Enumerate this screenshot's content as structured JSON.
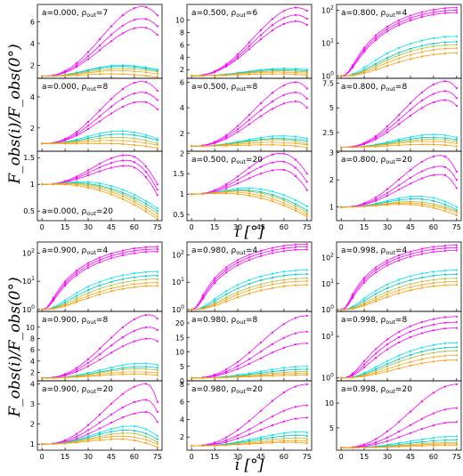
{
  "figure": {
    "ylabel": "F_obs(i)/F_obs(0°)",
    "xlabel": "i [°]",
    "xticks": [
      0,
      15,
      30,
      45,
      60,
      75
    ]
  },
  "colors": [
    "#ff00ff",
    "#ff00ff",
    "#ff00ff",
    "#00e5ee",
    "#00c8c8",
    "#a3c33a",
    "#ffa01e",
    "#ff9900"
  ],
  "chart_data": [
    {
      "type": "line",
      "a": "0.000",
      "rho": "7",
      "label": "a=0.000, ρout=7",
      "yscale": "linear",
      "ylim": [
        0.8,
        7.6
      ],
      "yticks": [
        2,
        4,
        6
      ],
      "peaks": [
        7.4,
        6.3,
        5.5,
        2.0,
        1.9,
        1.7,
        1.5,
        1.2
      ],
      "pk": [
        65,
        65,
        65,
        50,
        50,
        50,
        48,
        45
      ],
      "end": [
        6.6,
        5.6,
        4.8,
        1.6,
        1.5,
        1.4,
        1.2,
        0.9
      ]
    },
    {
      "type": "line",
      "a": "0.500",
      "rho": "6",
      "label": "a=0.500, ρout=6",
      "yscale": "linear",
      "ylim": [
        0.6,
        12.5
      ],
      "yticks": [
        2,
        4,
        6,
        8,
        10
      ],
      "peaks": [
        12.0,
        10.8,
        9.8,
        2.2,
        2.0,
        1.8,
        1.6,
        1.3
      ],
      "pk": [
        68,
        68,
        68,
        60,
        58,
        58,
        55,
        55
      ],
      "end": [
        11.5,
        10.2,
        9.2,
        2.0,
        1.8,
        1.6,
        1.4,
        1.1
      ]
    },
    {
      "type": "line",
      "a": "0.800",
      "rho": "4",
      "label": "a=0.800, ρout=4",
      "yscale": "log",
      "ylim": [
        0.85,
        150
      ],
      "yticks": [
        1,
        10,
        100
      ],
      "peaks": [
        120,
        100,
        85,
        16,
        11,
        9,
        7,
        5
      ],
      "pk": [
        75,
        75,
        75,
        75,
        75,
        75,
        75,
        75
      ],
      "end": [
        120,
        100,
        85,
        16,
        11,
        9,
        7,
        5
      ]
    },
    {
      "type": "line",
      "a": "0.000",
      "rho": "8",
      "label": "a=0.000, ρout=8",
      "yscale": "linear",
      "ylim": [
        0.5,
        5.2
      ],
      "yticks": [
        2,
        4
      ],
      "peaks": [
        5.0,
        4.3,
        3.7,
        1.8,
        1.6,
        1.4,
        1.2,
        1.0
      ],
      "pk": [
        65,
        65,
        65,
        50,
        50,
        48,
        45,
        40
      ],
      "end": [
        4.4,
        3.8,
        3.2,
        1.3,
        1.2,
        1.0,
        0.9,
        0.7
      ]
    },
    {
      "type": "line",
      "a": "0.500",
      "rho": "8",
      "label": "a=0.500, ρout=8",
      "yscale": "linear",
      "ylim": [
        0.6,
        6.3
      ],
      "yticks": [
        2,
        4,
        6
      ],
      "peaks": [
        6.0,
        5.2,
        4.5,
        1.8,
        1.6,
        1.5,
        1.3,
        1.1
      ],
      "pk": [
        68,
        68,
        68,
        58,
        55,
        55,
        52,
        50
      ],
      "end": [
        5.5,
        4.7,
        4.0,
        1.6,
        1.4,
        1.2,
        1.1,
        0.9
      ]
    },
    {
      "type": "line",
      "a": "0.800",
      "rho": "8",
      "label": "a=0.800, ρout=8",
      "yscale": "linear",
      "ylim": [
        0.6,
        8.0
      ],
      "yticks": [
        2.5,
        5.0,
        7.5
      ],
      "peaks": [
        7.7,
        6.7,
        5.8,
        2.3,
        2.0,
        1.8,
        1.6,
        1.3
      ],
      "pk": [
        68,
        68,
        68,
        60,
        58,
        58,
        55,
        55
      ],
      "end": [
        7.0,
        6.0,
        5.2,
        2.0,
        1.8,
        1.6,
        1.4,
        1.1
      ]
    },
    {
      "type": "line",
      "a": "0.000",
      "rho": "20",
      "label": "a=0.000, ρout=20",
      "yscale": "linear",
      "ylim": [
        0.32,
        1.62
      ],
      "yticks": [
        0.5,
        1.0,
        1.5
      ],
      "peaks": [
        1.55,
        1.45,
        1.35,
        1.05,
        1.03,
        1.02,
        1.01,
        1.0
      ],
      "pk": [
        55,
        55,
        55,
        25,
        20,
        18,
        15,
        10
      ],
      "end": [
        1.0,
        0.9,
        0.8,
        0.55,
        0.5,
        0.45,
        0.4,
        0.35
      ]
    },
    {
      "type": "line",
      "a": "0.500",
      "rho": "20",
      "label": "a=0.500, ρout=20",
      "yscale": "linear",
      "ylim": [
        0.35,
        2.05
      ],
      "yticks": [
        0.5,
        1.0,
        1.5,
        2.0
      ],
      "peaks": [
        2.0,
        1.8,
        1.6,
        1.15,
        1.1,
        1.08,
        1.05,
        1.02
      ],
      "pk": [
        58,
        58,
        58,
        35,
        32,
        30,
        25,
        20
      ],
      "end": [
        1.5,
        1.3,
        1.1,
        0.7,
        0.6,
        0.55,
        0.5,
        0.45
      ]
    },
    {
      "type": "line",
      "a": "0.800",
      "rho": "20",
      "label": "a=0.800, ρout=20",
      "yscale": "linear",
      "ylim": [
        0.5,
        3.05
      ],
      "yticks": [
        1,
        2,
        3
      ],
      "peaks": [
        2.9,
        2.5,
        2.2,
        1.4,
        1.3,
        1.2,
        1.15,
        1.1
      ],
      "pk": [
        65,
        65,
        65,
        50,
        48,
        45,
        42,
        40
      ],
      "end": [
        2.3,
        2.0,
        1.7,
        1.0,
        0.9,
        0.85,
        0.8,
        0.7
      ]
    },
    {
      "type": "line",
      "a": "0.900",
      "rho": "4",
      "label": "a=0.900, ρout=4",
      "yscale": "log",
      "ylim": [
        0.85,
        250
      ],
      "yticks": [
        1,
        10,
        100
      ],
      "peaks": [
        170,
        140,
        115,
        22,
        16,
        12,
        9,
        7
      ],
      "pk": [
        75,
        75,
        75,
        75,
        75,
        75,
        75,
        75
      ],
      "end": [
        170,
        140,
        115,
        22,
        16,
        12,
        9,
        7
      ]
    },
    {
      "type": "line",
      "a": "0.980",
      "rho": "4",
      "label": "a=0.980, ρout=4",
      "yscale": "log",
      "ylim": [
        0.85,
        300
      ],
      "yticks": [
        1,
        10,
        100
      ],
      "peaks": [
        250,
        200,
        160,
        28,
        20,
        14,
        11,
        8
      ],
      "pk": [
        75,
        75,
        75,
        75,
        75,
        75,
        75,
        75
      ],
      "end": [
        250,
        200,
        160,
        28,
        20,
        14,
        11,
        8
      ]
    },
    {
      "type": "line",
      "a": "0.998",
      "rho": "4",
      "label": "a=0.998, ρout=4",
      "yscale": "log",
      "ylim": [
        0.85,
        400
      ],
      "yticks": [
        1,
        10,
        100
      ],
      "peaks": [
        300,
        240,
        190,
        33,
        23,
        16,
        12,
        9
      ],
      "pk": [
        75,
        75,
        75,
        75,
        75,
        75,
        75,
        75
      ],
      "end": [
        300,
        240,
        190,
        33,
        23,
        16,
        12,
        9
      ]
    },
    {
      "type": "line",
      "a": "0.900",
      "rho": "8",
      "label": "a=0.900, ρout=8",
      "yscale": "linear",
      "ylim": [
        0.5,
        12.8
      ],
      "yticks": [
        2,
        4,
        6,
        8,
        10
      ],
      "peaks": [
        12.2,
        10.0,
        8.0,
        3.6,
        3.0,
        2.6,
        2.1,
        1.7
      ],
      "pk": [
        70,
        70,
        70,
        65,
        65,
        62,
        60,
        60
      ],
      "end": [
        11.5,
        9.5,
        7.5,
        3.3,
        2.8,
        2.4,
        1.9,
        1.5
      ]
    },
    {
      "type": "line",
      "a": "0.980",
      "rho": "8",
      "label": "a=0.980, ρout=8",
      "yscale": "linear",
      "ylim": [
        0,
        24
      ],
      "yticks": [
        0,
        5,
        10,
        15,
        20
      ],
      "peaks": [
        22.5,
        17.0,
        13.0,
        5.0,
        4.0,
        3.2,
        2.6,
        2.0
      ],
      "pk": [
        75,
        75,
        75,
        75,
        75,
        75,
        75,
        75
      ],
      "end": [
        22.5,
        17.0,
        13.0,
        5.0,
        4.0,
        3.2,
        2.6,
        2.0
      ]
    },
    {
      "type": "line",
      "a": "0.998",
      "rho": "8",
      "label": "a=0.998, ρout=8",
      "yscale": "log",
      "ylim": [
        0.85,
        40
      ],
      "yticks": [
        1,
        10
      ],
      "peaks": [
        30,
        22,
        16,
        7,
        5.5,
        4.5,
        3.5,
        2.7
      ],
      "pk": [
        75,
        75,
        75,
        75,
        75,
        75,
        75,
        75
      ],
      "end": [
        30,
        22,
        16,
        7,
        5.5,
        4.5,
        3.5,
        2.7
      ]
    },
    {
      "type": "line",
      "a": "0.900",
      "rho": "20",
      "label": "a=0.900, ρout=20",
      "yscale": "linear",
      "ylim": [
        0.7,
        4.15
      ],
      "yticks": [
        1,
        2,
        3,
        4
      ],
      "peaks": [
        4.0,
        3.2,
        2.6,
        1.9,
        1.7,
        1.55,
        1.4,
        1.25
      ],
      "pk": [
        68,
        68,
        68,
        58,
        55,
        55,
        52,
        50
      ],
      "end": [
        3.1,
        2.6,
        2.1,
        1.4,
        1.25,
        1.1,
        1.0,
        0.85
      ]
    },
    {
      "type": "line",
      "a": "0.980",
      "rho": "20",
      "label": "a=0.980, ρout=20",
      "yscale": "linear",
      "ylim": [
        0.5,
        8.4
      ],
      "yticks": [
        2,
        4,
        6,
        8
      ],
      "peaks": [
        8.0,
        5.6,
        4.2,
        2.6,
        2.2,
        1.9,
        1.6,
        1.4
      ],
      "pk": [
        75,
        75,
        75,
        72,
        70,
        70,
        68,
        65
      ],
      "end": [
        8.0,
        5.6,
        4.2,
        2.5,
        2.1,
        1.8,
        1.55,
        1.3
      ]
    },
    {
      "type": "line",
      "a": "0.998",
      "rho": "20",
      "label": "a=0.998, ρout=20",
      "yscale": "linear",
      "ylim": [
        0.5,
        14.5
      ],
      "yticks": [
        5,
        10
      ],
      "peaks": [
        13.8,
        9.0,
        6.2,
        3.3,
        2.6,
        2.1,
        1.8,
        1.5
      ],
      "pk": [
        75,
        75,
        75,
        75,
        75,
        75,
        75,
        75
      ],
      "end": [
        13.8,
        9.0,
        6.2,
        3.3,
        2.6,
        2.1,
        1.8,
        1.5
      ]
    }
  ]
}
